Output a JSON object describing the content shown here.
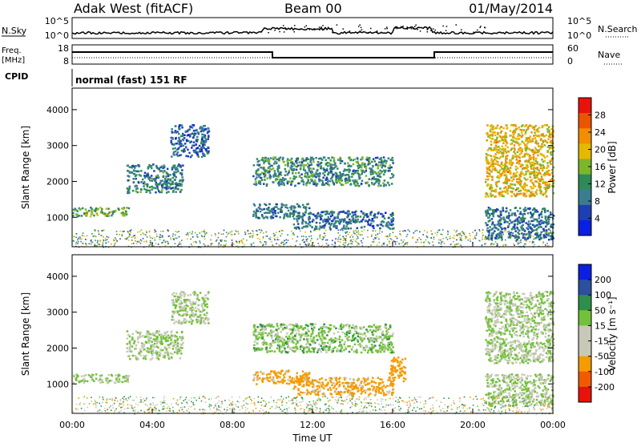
{
  "header": {
    "site": "Adak West (fitACF)",
    "beam": "Beam 00",
    "date": "01/May/2014"
  },
  "noise_panel": {
    "left_label": "N.Sky",
    "right_label": "N.Search",
    "left_ticks": [
      "10^5",
      "10^0"
    ],
    "right_ticks": [
      "10^5",
      "10^0"
    ]
  },
  "freq_panel": {
    "left_label_1": "Freq.",
    "left_label_2": "[MHz]",
    "left_ticks": [
      "18",
      "8"
    ],
    "right_label": "Nave",
    "right_ticks": [
      "60",
      "0"
    ]
  },
  "cpid": {
    "label": "CPID",
    "mode": "normal (fast) 151 RF"
  },
  "colors": {
    "power_scale": [
      "#0b1fe0",
      "#1e3fb4",
      "#3a7d93",
      "#2f8a58",
      "#7ab829",
      "#e6b800",
      "#f28e00",
      "#ec5400",
      "#e8120a"
    ],
    "velocity_scale": [
      "#e8120a",
      "#f25a00",
      "#f59b00",
      "#c8c8b8",
      "#c8c8b8",
      "#72c13a",
      "#2e8f4a",
      "#2c4fa0",
      "#0b1fe0"
    ]
  },
  "chart_data": [
    {
      "type": "heatmap",
      "panel": "power",
      "ylabel": "Slant Range [km]",
      "yticks": [
        "4000",
        "3000",
        "2000",
        "1000"
      ],
      "colorbar_label": "Power [dB]",
      "colorbar_ticks": [
        "28",
        "24",
        "20",
        "16",
        "12",
        "8",
        "4"
      ],
      "colorbar_range": [
        0,
        32
      ],
      "x_range_ut_hours": [
        0,
        24
      ],
      "y_range_km": [
        180,
        4600
      ],
      "regions": [
        {
          "t": [
            0.0,
            2.8
          ],
          "r": [
            1050,
            1300
          ],
          "level": 14
        },
        {
          "t": [
            2.7,
            5.5
          ],
          "r": [
            1700,
            2500
          ],
          "level": 10
        },
        {
          "t": [
            4.9,
            6.8
          ],
          "r": [
            2700,
            3600
          ],
          "level": 7
        },
        {
          "t": [
            9.0,
            16.0
          ],
          "r": [
            1900,
            2700
          ],
          "level": 11
        },
        {
          "t": [
            9.0,
            11.8
          ],
          "r": [
            1000,
            1400
          ],
          "level": 9
        },
        {
          "t": [
            11.0,
            16.0
          ],
          "r": [
            700,
            1200
          ],
          "level": 8
        },
        {
          "t": [
            20.6,
            24.0
          ],
          "r": [
            1600,
            3600
          ],
          "level": 20
        },
        {
          "t": [
            20.6,
            24.0
          ],
          "r": [
            400,
            1300
          ],
          "level": 9
        }
      ]
    },
    {
      "type": "heatmap",
      "panel": "velocity",
      "ylabel": "Slant Range [km]",
      "yticks": [
        "4000",
        "3000",
        "2000",
        "1000"
      ],
      "xlabel": "Time UT",
      "xticks": [
        "00:00",
        "04:00",
        "08:00",
        "12:00",
        "16:00",
        "20:00",
        "00:00"
      ],
      "colorbar_label": "Velocity [m s⁻¹]",
      "colorbar_ticks": [
        "200",
        "100",
        "50",
        "15",
        "-15",
        "-50",
        "-100",
        "-200"
      ],
      "colorbar_range": [
        -250,
        250
      ],
      "x_range_ut_hours": [
        0,
        24
      ],
      "y_range_km": [
        180,
        4600
      ],
      "regions": [
        {
          "t": [
            0.0,
            2.8
          ],
          "r": [
            1050,
            1300
          ],
          "level": 0
        },
        {
          "t": [
            2.7,
            5.5
          ],
          "r": [
            1700,
            2500
          ],
          "level": 0
        },
        {
          "t": [
            4.9,
            6.8
          ],
          "r": [
            2700,
            3600
          ],
          "level": 0
        },
        {
          "t": [
            9.0,
            16.0
          ],
          "r": [
            1900,
            2700
          ],
          "level": 5
        },
        {
          "t": [
            9.0,
            11.8
          ],
          "r": [
            1000,
            1400
          ],
          "level": -60
        },
        {
          "t": [
            11.0,
            16.0
          ],
          "r": [
            700,
            1200
          ],
          "level": -60
        },
        {
          "t": [
            15.8,
            16.6
          ],
          "r": [
            1100,
            1800
          ],
          "level": -70
        },
        {
          "t": [
            20.6,
            24.0
          ],
          "r": [
            1600,
            3600
          ],
          "level": 0
        },
        {
          "t": [
            20.6,
            24.0
          ],
          "r": [
            400,
            1300
          ],
          "level": 0
        }
      ]
    }
  ]
}
